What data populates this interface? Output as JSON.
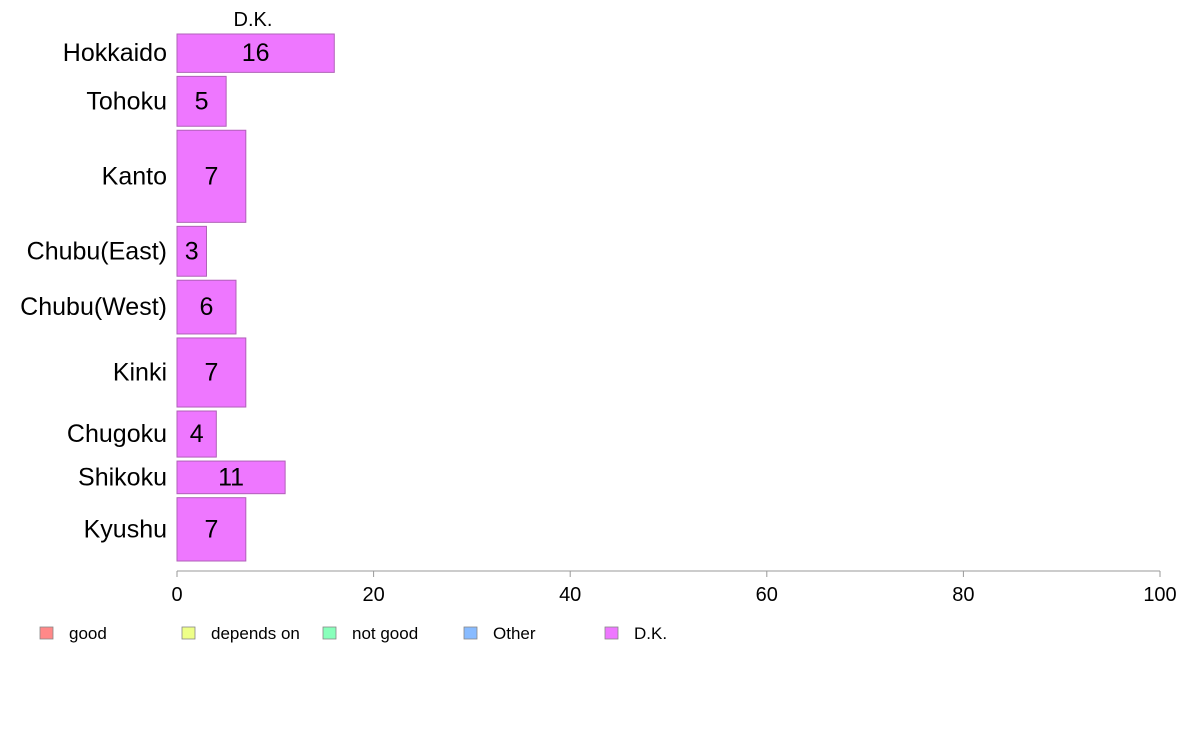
{
  "chart_data": {
    "type": "bar",
    "orientation": "horizontal",
    "series_header": "D.K.",
    "categories": [
      "Hokkaido",
      "Tohoku",
      "Kanto",
      "Chubu(East)",
      "Chubu(West)",
      "Kinki",
      "Chugoku",
      "Shikoku",
      "Kyushu"
    ],
    "series": [
      {
        "name": "D.K.",
        "values": [
          16,
          5,
          7,
          3,
          6,
          7,
          4,
          11,
          7
        ],
        "color": "#ee77ff"
      }
    ],
    "category_weights": [
      1.0,
      1.3,
      2.4,
      1.3,
      1.4,
      1.8,
      1.2,
      0.85,
      1.65
    ],
    "xlim": [
      0,
      100
    ],
    "xticks": [
      0,
      20,
      40,
      60,
      80,
      100
    ],
    "xlabel": "",
    "ylabel": "",
    "grid": false,
    "legend_position": "bottom",
    "legend": [
      {
        "label": "good",
        "color": "#ff8888"
      },
      {
        "label": "depends on",
        "color": "#eeff88"
      },
      {
        "label": "not good",
        "color": "#88ffbb"
      },
      {
        "label": "Other",
        "color": "#88bbff"
      },
      {
        "label": "D.K.",
        "color": "#ee77ff"
      }
    ]
  }
}
